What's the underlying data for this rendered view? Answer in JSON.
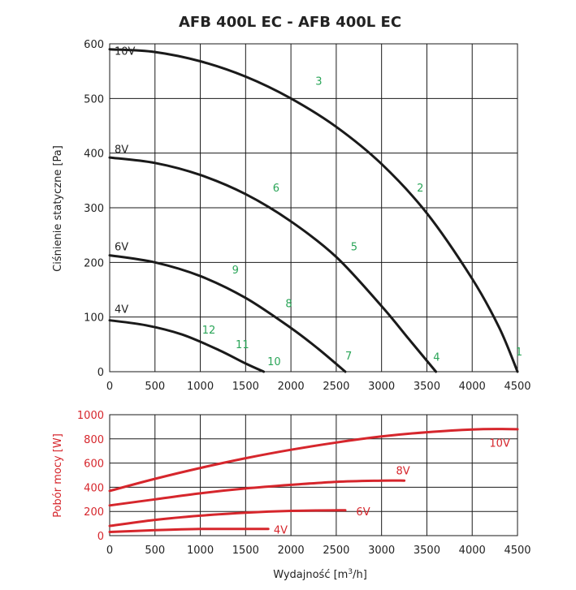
{
  "chart_data": [
    {
      "type": "line",
      "id": "pressure",
      "title": "AFB 400L EC - AFB 400L EC",
      "xlabel": "",
      "ylabel": "Ciśnienie statyczne [Pa]",
      "xlim": [
        0,
        4500
      ],
      "ylim": [
        0,
        600
      ],
      "xticks": [
        "0",
        "500",
        "1000",
        "1500",
        "2000",
        "2500",
        "3000",
        "3500",
        "4000",
        "4500"
      ],
      "yticks": [
        "0",
        "100",
        "200",
        "300",
        "400",
        "500",
        "600"
      ],
      "grid": true,
      "colors": {
        "curve": "#1a1a1a",
        "grid": "#1a1a1a",
        "point": "#2aa558"
      },
      "series": [
        {
          "name": "10V",
          "label_at": [
            0,
            580
          ],
          "x": [
            0,
            500,
            1000,
            1500,
            2000,
            2500,
            3000,
            3500,
            4000,
            4300,
            4500
          ],
          "y": [
            590,
            585,
            568,
            540,
            500,
            448,
            380,
            290,
            170,
            80,
            0
          ]
        },
        {
          "name": "8V",
          "label_at": [
            0,
            400
          ],
          "x": [
            0,
            500,
            1000,
            1500,
            2000,
            2500,
            3000,
            3300,
            3600
          ],
          "y": [
            392,
            382,
            360,
            325,
            275,
            210,
            120,
            60,
            0
          ]
        },
        {
          "name": "6V",
          "label_at": [
            0,
            222
          ],
          "x": [
            0,
            500,
            1000,
            1500,
            2000,
            2300,
            2600
          ],
          "y": [
            213,
            200,
            175,
            135,
            80,
            42,
            0
          ]
        },
        {
          "name": "4V",
          "label_at": [
            0,
            108
          ],
          "x": [
            0,
            400,
            800,
            1200,
            1500,
            1700
          ],
          "y": [
            94,
            85,
            68,
            40,
            15,
            0
          ]
        }
      ],
      "points": [
        {
          "label": "1",
          "x": 4480,
          "y": 30
        },
        {
          "label": "2",
          "x": 3390,
          "y": 330
        },
        {
          "label": "3",
          "x": 2270,
          "y": 525
        },
        {
          "label": "4",
          "x": 3570,
          "y": 20
        },
        {
          "label": "5",
          "x": 2660,
          "y": 222
        },
        {
          "label": "6",
          "x": 1800,
          "y": 330
        },
        {
          "label": "7",
          "x": 2600,
          "y": 22
        },
        {
          "label": "8",
          "x": 1940,
          "y": 118
        },
        {
          "label": "9",
          "x": 1350,
          "y": 180
        },
        {
          "label": "10",
          "x": 1740,
          "y": 12
        },
        {
          "label": "11",
          "x": 1390,
          "y": 43
        },
        {
          "label": "12",
          "x": 1020,
          "y": 70
        }
      ]
    },
    {
      "type": "line",
      "id": "power",
      "title": "",
      "xlabel": "Wydajność [m³/h]",
      "xlabel_main": "Wydajność [m",
      "xlabel_sup": "3",
      "xlabel_end": "/h]",
      "ylabel": "Pobór mocy [W]",
      "xlim": [
        0,
        4500
      ],
      "ylim": [
        0,
        1000
      ],
      "xticks": [
        "0",
        "500",
        "1000",
        "1500",
        "2000",
        "2500",
        "3000",
        "3500",
        "4000",
        "4500"
      ],
      "yticks": [
        "0",
        "200",
        "400",
        "600",
        "800",
        "1000"
      ],
      "grid": true,
      "colors": {
        "curve": "#d6262c",
        "grid": "#1a1a1a",
        "label": "#d6262c"
      },
      "series": [
        {
          "name": "10V",
          "label_at": [
            4190,
            770
          ],
          "x": [
            0,
            500,
            1000,
            1500,
            2000,
            2500,
            3000,
            3500,
            4000,
            4300,
            4500
          ],
          "y": [
            370,
            470,
            560,
            640,
            710,
            770,
            820,
            855,
            878,
            882,
            880
          ]
        },
        {
          "name": "8V",
          "label_at": [
            3160,
            540
          ],
          "x": [
            0,
            500,
            1000,
            1500,
            2000,
            2500,
            3000,
            3250
          ],
          "y": [
            250,
            300,
            350,
            390,
            420,
            445,
            455,
            455
          ]
        },
        {
          "name": "6V",
          "label_at": [
            2720,
            200
          ],
          "x": [
            0,
            500,
            1000,
            1500,
            2000,
            2600
          ],
          "y": [
            80,
            130,
            165,
            190,
            205,
            210
          ]
        },
        {
          "name": "4V",
          "label_at": [
            1810,
            50
          ],
          "x": [
            0,
            500,
            1000,
            1500,
            1750
          ],
          "y": [
            30,
            45,
            55,
            55,
            55
          ]
        }
      ]
    }
  ]
}
